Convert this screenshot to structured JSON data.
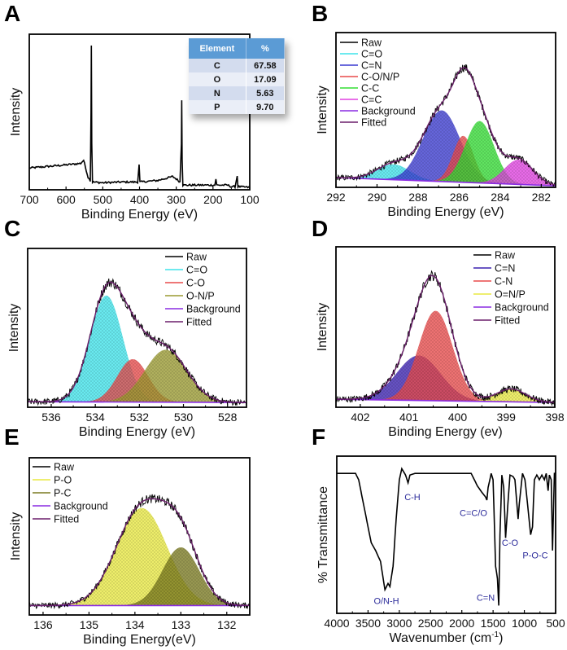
{
  "chart_data": [
    {
      "panel": "A",
      "type": "line",
      "xlabel": "Binding Energy (eV)",
      "ylabel": "Intensity",
      "xlim": [
        700,
        100
      ],
      "ylim": [
        0,
        1
      ],
      "xticks": [
        "700",
        "600",
        "500",
        "400",
        "300",
        "200",
        "100"
      ],
      "series": [
        {
          "color": "#000000",
          "points": [
            [
              700,
              0.14
            ],
            [
              650,
              0.15
            ],
            [
              600,
              0.16
            ],
            [
              560,
              0.17
            ],
            [
              552,
              0.19
            ],
            [
              540,
              0.08
            ],
            [
              534,
              0.06
            ],
            [
              532,
              0.5
            ],
            [
              531,
              0.93
            ],
            [
              530,
              0.3
            ],
            [
              528,
              0.05
            ],
            [
              500,
              0.045
            ],
            [
              450,
              0.05
            ],
            [
              405,
              0.05
            ],
            [
              401,
              0.16
            ],
            [
              399,
              0.05
            ],
            [
              350,
              0.06
            ],
            [
              310,
              0.085
            ],
            [
              300,
              0.07
            ],
            [
              290,
              0.05
            ],
            [
              286,
              0.3
            ],
            [
              285,
              0.58
            ],
            [
              284,
              0.2
            ],
            [
              282,
              0.03
            ],
            [
              250,
              0.03
            ],
            [
              195,
              0.03
            ],
            [
              192,
              0.07
            ],
            [
              190,
              0.03
            ],
            [
              160,
              0.03
            ],
            [
              150,
              0.02
            ],
            [
              140,
              0.02
            ],
            [
              134,
              0.09
            ],
            [
              132,
              0.02
            ],
            [
              100,
              0.015
            ]
          ]
        }
      ],
      "inset_table": {
        "headers": [
          "Element",
          "%"
        ],
        "rows": [
          [
            "C",
            "67.58"
          ],
          [
            "O",
            "17.09"
          ],
          [
            "N",
            "5.63"
          ],
          [
            "P",
            "9.70"
          ]
        ]
      }
    },
    {
      "panel": "B",
      "type": "area",
      "xlabel": "Binding Energy (eV)",
      "ylabel": "Intensity",
      "xlim": [
        292,
        281.3
      ],
      "ylim": [
        0,
        1
      ],
      "xticks": [
        "292",
        "290",
        "288",
        "286",
        "284",
        "282"
      ],
      "legend_position": "top-left",
      "raw_label": "Raw",
      "background_label": "Background",
      "fitted_label": "Fitted",
      "raw_color": "#000000",
      "background_color": "#8a2be2",
      "fitted_color": "#6b1f6b",
      "background": [
        [
          292,
          0.063
        ],
        [
          281.3,
          0.01
        ]
      ],
      "components": [
        {
          "name": "C=O",
          "center": 289.2,
          "amplitude": 0.1,
          "sigma": 0.8,
          "color": "#3fe3ea"
        },
        {
          "name": "C=N",
          "center": 286.85,
          "amplitude": 0.46,
          "sigma": 0.9,
          "color": "#3a3ad0"
        },
        {
          "name": "C-O/N/P",
          "center": 285.8,
          "amplitude": 0.3,
          "sigma": 0.5,
          "color": "#e84a4a"
        },
        {
          "name": "C-C",
          "center": 285.0,
          "amplitude": 0.4,
          "sigma": 0.7,
          "color": "#33dd33"
        },
        {
          "name": "C=C",
          "center": 283.1,
          "amplitude": 0.16,
          "sigma": 0.7,
          "color": "#e040e0"
        }
      ]
    },
    {
      "panel": "C",
      "type": "area",
      "xlabel": "Binding Energy (eV)",
      "ylabel": "Intensity",
      "xlim": [
        537.07,
        527.14
      ],
      "ylim": [
        0,
        1
      ],
      "xticks": [
        "536",
        "534",
        "532",
        "530",
        "528"
      ],
      "legend_position": "top-right",
      "raw_label": "Raw",
      "background_label": "Background",
      "fitted_label": "Fitted",
      "raw_color": "#000000",
      "background_color": "#8a2be2",
      "fitted_color": "#6b1f6b",
      "background": [
        [
          537.07,
          0.035
        ],
        [
          527.14,
          0.03
        ]
      ],
      "components": [
        {
          "name": "C=O",
          "center": 533.5,
          "amplitude": 0.67,
          "sigma": 0.75,
          "color": "#3fe3ea"
        },
        {
          "name": "C-O",
          "center": 532.3,
          "amplitude": 0.27,
          "sigma": 0.7,
          "color": "#e84a4a"
        },
        {
          "name": "O-N/P",
          "center": 530.8,
          "amplitude": 0.33,
          "sigma": 0.95,
          "color": "#9a9a30"
        }
      ]
    },
    {
      "panel": "D",
      "type": "area",
      "xlabel": "Binding Energy (ev)",
      "ylabel": "Intensity",
      "xlim": [
        402.5,
        398
      ],
      "ylim": [
        0,
        1
      ],
      "xticks": [
        "402",
        "401",
        "400",
        "399",
        "398"
      ],
      "legend_position": "top-right",
      "raw_label": "Raw",
      "background_label": "Background",
      "fitted_label": "Fitted",
      "raw_color": "#000000",
      "background_color": "#8a2be2",
      "fitted_color": "#6b1f6b",
      "background": [
        [
          402.5,
          0.05
        ],
        [
          398,
          0.03
        ]
      ],
      "components": [
        {
          "name": "C=N",
          "center": 400.8,
          "amplitude": 0.28,
          "sigma": 0.45,
          "color": "#3a20b0"
        },
        {
          "name": "C-N",
          "center": 400.45,
          "amplitude": 0.56,
          "sigma": 0.35,
          "color": "#e84a4a"
        },
        {
          "name": "O=N/P",
          "center": 398.9,
          "amplitude": 0.08,
          "sigma": 0.3,
          "color": "#e8e840"
        }
      ]
    },
    {
      "panel": "E",
      "type": "area",
      "xlabel": "Binding Energy(eV)",
      "ylabel": "Intensity",
      "xlim": [
        136.3,
        131.5
      ],
      "ylim": [
        0,
        1
      ],
      "xticks": [
        "136",
        "135",
        "134",
        "133",
        "132"
      ],
      "legend_position": "top-left",
      "raw_label": "Raw",
      "background_label": "Background",
      "fitted_label": "Fitted",
      "raw_color": "#000000",
      "background_color": "#8a2be2",
      "fitted_color": "#6b1f6b",
      "background": [
        [
          136.3,
          0.06
        ],
        [
          131.5,
          0.06
        ]
      ],
      "components": [
        {
          "name": "P-O",
          "center": 133.85,
          "amplitude": 0.62,
          "sigma": 0.55,
          "color": "#e8e840"
        },
        {
          "name": "P-C",
          "center": 133.0,
          "amplitude": 0.37,
          "sigma": 0.4,
          "color": "#7a7a20"
        }
      ]
    },
    {
      "panel": "F",
      "type": "line",
      "xlabel": "Wavenumber (cm",
      "xlabel_superscript": "-1",
      "xlabel_suffix": ")",
      "ylabel": "% Transmittance",
      "xlim": [
        4000,
        500
      ],
      "ylim": [
        0,
        1
      ],
      "xticks": [
        "4000",
        "3500",
        "3000",
        "2500",
        "2000",
        "1500",
        "1000",
        "500"
      ],
      "series": [
        {
          "color": "#000000",
          "points": [
            [
              4000,
              0.89
            ],
            [
              3700,
              0.89
            ],
            [
              3650,
              0.85
            ],
            [
              3550,
              0.65
            ],
            [
              3450,
              0.45
            ],
            [
              3380,
              0.4
            ],
            [
              3300,
              0.33
            ],
            [
              3230,
              0.15
            ],
            [
              3180,
              0.19
            ],
            [
              3150,
              0.17
            ],
            [
              3100,
              0.3
            ],
            [
              3050,
              0.6
            ],
            [
              3000,
              0.85
            ],
            [
              2960,
              0.92
            ],
            [
              2900,
              0.88
            ],
            [
              2860,
              0.83
            ],
            [
              2830,
              0.88
            ],
            [
              2750,
              0.89
            ],
            [
              2500,
              0.89
            ],
            [
              2000,
              0.89
            ],
            [
              1850,
              0.89
            ],
            [
              1750,
              0.81
            ],
            [
              1680,
              0.77
            ],
            [
              1620,
              0.74
            ],
            [
              1600,
              0.72
            ],
            [
              1580,
              0.8
            ],
            [
              1530,
              0.89
            ],
            [
              1500,
              0.85
            ],
            [
              1460,
              0.3
            ],
            [
              1430,
              0.22
            ],
            [
              1410,
              0.05
            ],
            [
              1390,
              0.5
            ],
            [
              1360,
              0.88
            ],
            [
              1330,
              0.8
            ],
            [
              1300,
              0.48
            ],
            [
              1280,
              0.6
            ],
            [
              1230,
              0.88
            ],
            [
              1180,
              0.87
            ],
            [
              1150,
              0.85
            ],
            [
              1100,
              0.6
            ],
            [
              1080,
              0.7
            ],
            [
              1030,
              0.89
            ],
            [
              990,
              0.85
            ],
            [
              950,
              0.7
            ],
            [
              900,
              0.5
            ],
            [
              870,
              0.55
            ],
            [
              840,
              0.85
            ],
            [
              800,
              0.88
            ],
            [
              760,
              0.85
            ],
            [
              720,
              0.88
            ],
            [
              680,
              0.85
            ],
            [
              650,
              0.89
            ],
            [
              620,
              0.78
            ],
            [
              600,
              0.88
            ],
            [
              570,
              0.85
            ],
            [
              550,
              0.4
            ],
            [
              520,
              0.89
            ],
            [
              500,
              0.89
            ]
          ]
        }
      ],
      "annotation_color": "#2b2b9a",
      "annotations": [
        {
          "text": "O/N-H",
          "x": 3206,
          "y": 0.08
        },
        {
          "text": "C-H",
          "x": 2790,
          "y": 0.74
        },
        {
          "text": "C=C/O",
          "x": 1814,
          "y": 0.64
        },
        {
          "text": "C=N",
          "x": 1619,
          "y": 0.1
        },
        {
          "text": "C-O",
          "x": 1229,
          "y": 0.45
        },
        {
          "text": "P-O-C",
          "x": 825,
          "y": 0.37
        }
      ]
    }
  ]
}
